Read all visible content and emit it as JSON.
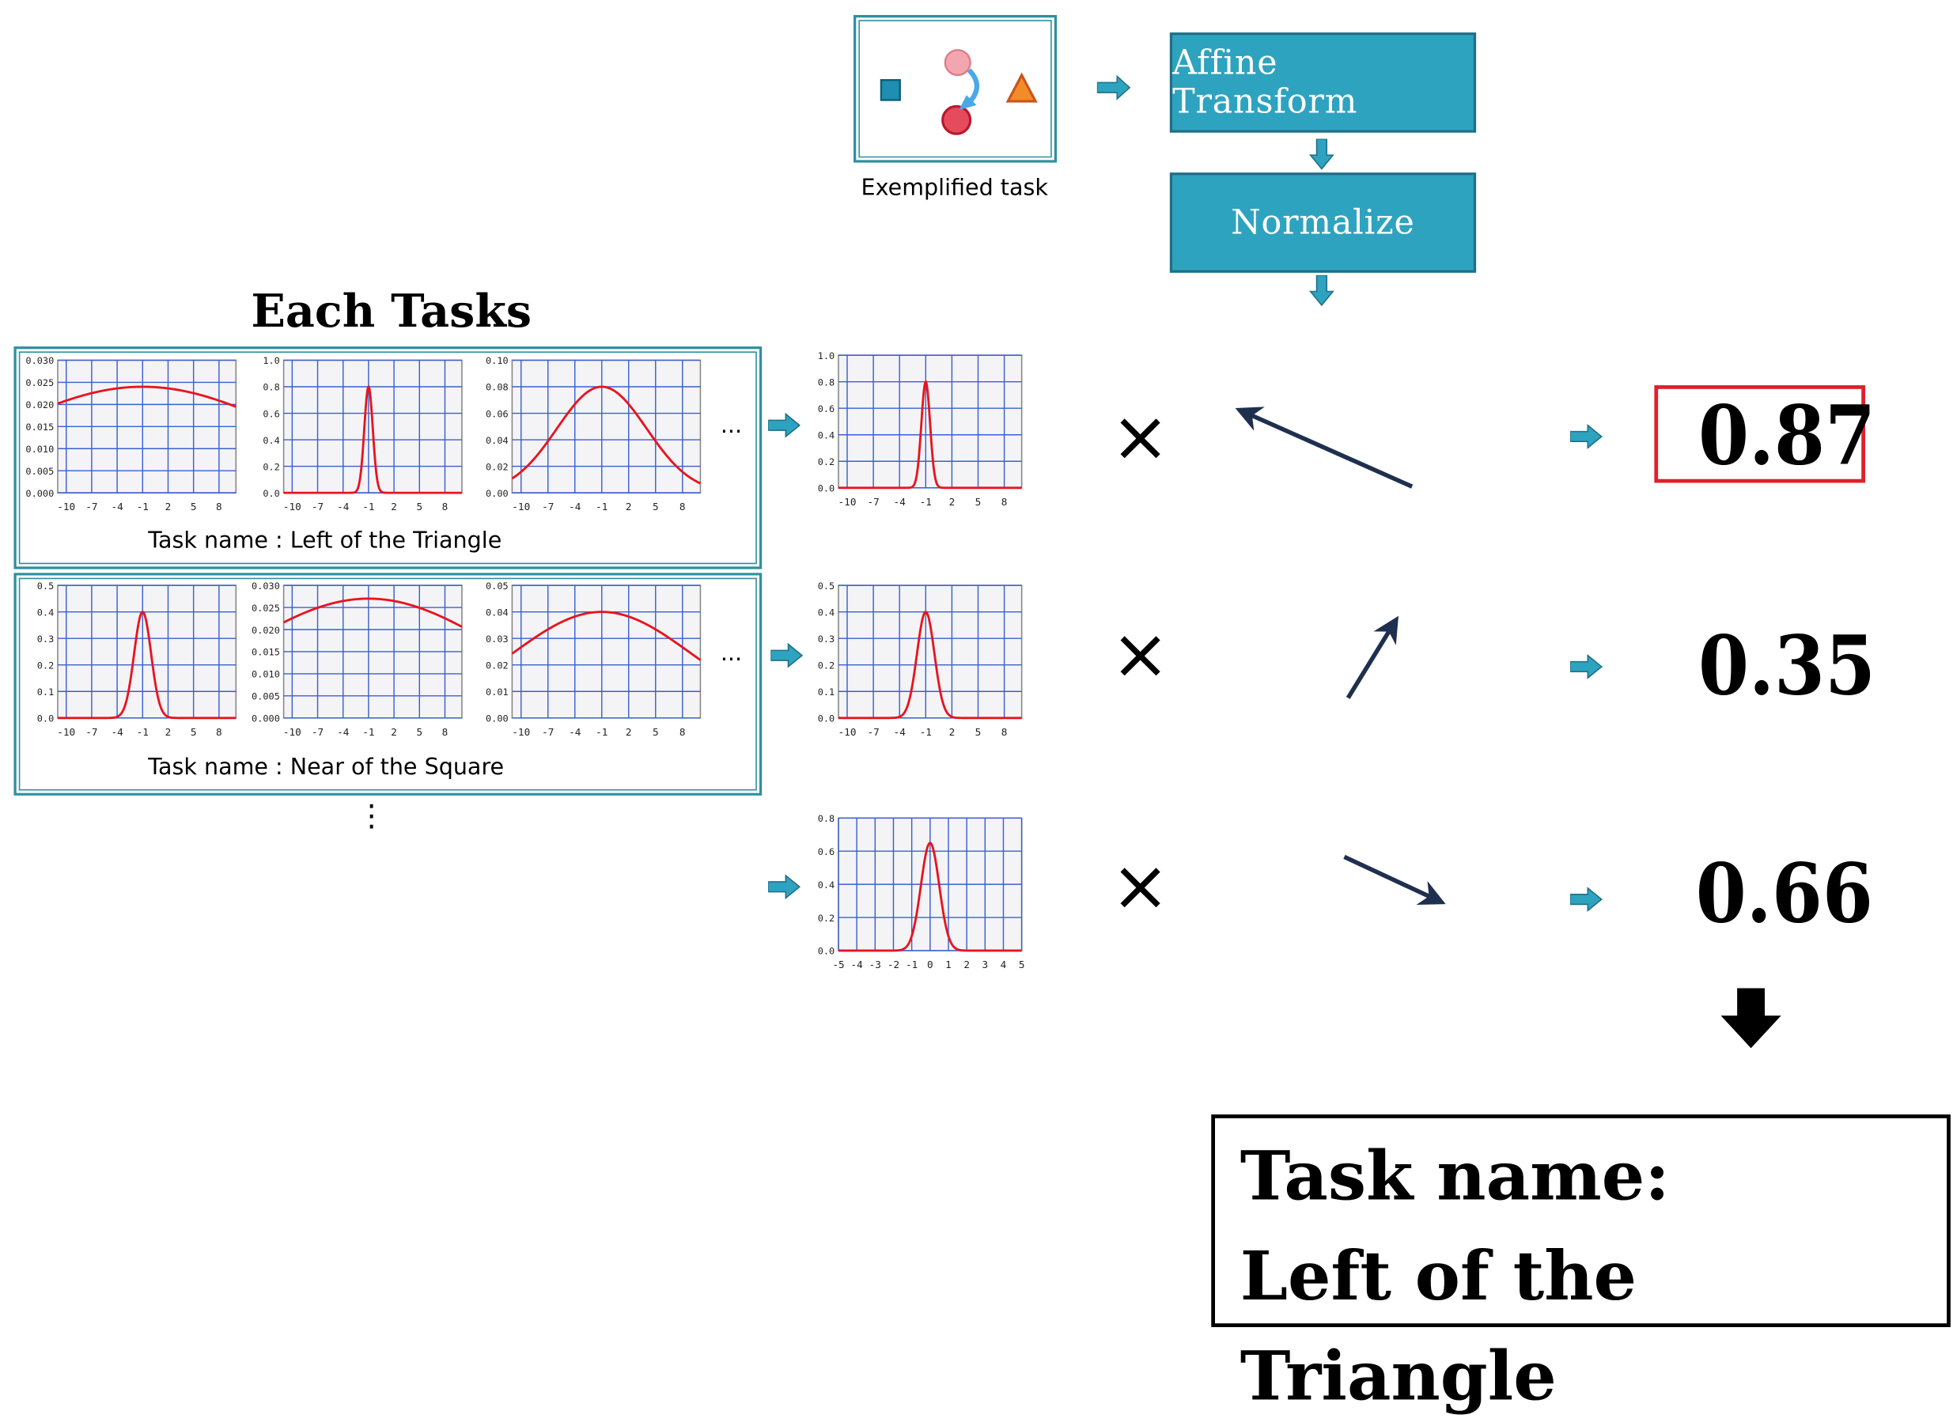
{
  "exemplified_task": {
    "caption": "Exemplified task"
  },
  "pipeline": {
    "step1": "Affine Transform",
    "step2": "Normalize"
  },
  "each_tasks": {
    "title": "Each Tasks",
    "ellipsis": "...",
    "vdots": "⋮"
  },
  "tasks": [
    {
      "name_label": "Task name : Left of the Triangle"
    },
    {
      "name_label": "Task name : Near of the Square"
    }
  ],
  "multiply_symbol": "×",
  "scores": [
    {
      "value": "0.87",
      "highlighted": true
    },
    {
      "value": "0.35",
      "highlighted": false
    },
    {
      "value": "0.66",
      "highlighted": false
    }
  ],
  "result": {
    "line1": "Task name:",
    "line2": "Left of the Triangle"
  },
  "colors": {
    "teal": "#2ea3c0",
    "curve": "#e8141e",
    "grid": "#3a5fd0",
    "highlight": "#e0202a",
    "arrow_dark": "#1f2f4f"
  },
  "chart_data": [
    {
      "id": "t1c1",
      "type": "line",
      "x_ticks": [
        "-10",
        "-7",
        "-4",
        "-1",
        "2",
        "5",
        "8"
      ],
      "y_ticks": [
        "0.000",
        "0.005",
        "0.010",
        "0.015",
        "0.020",
        "0.025",
        "0.030"
      ],
      "xlim": [
        -11,
        10
      ],
      "ylim": [
        0,
        0.03
      ],
      "curve": {
        "kind": "gaussian",
        "mean": -1,
        "sigma": 17,
        "peak": 0.024
      }
    },
    {
      "id": "t1c2",
      "type": "line",
      "x_ticks": [
        "-10",
        "-7",
        "-4",
        "-1",
        "2",
        "5",
        "8"
      ],
      "y_ticks": [
        "0.0",
        "0.2",
        "0.4",
        "0.6",
        "0.8",
        "1.0"
      ],
      "xlim": [
        -11,
        10
      ],
      "ylim": [
        0,
        1.0
      ],
      "curve": {
        "kind": "gaussian",
        "mean": -1,
        "sigma": 0.5,
        "peak": 0.8
      }
    },
    {
      "id": "t1c3",
      "type": "line",
      "x_ticks": [
        "-10",
        "-7",
        "-4",
        "-1",
        "2",
        "5",
        "8"
      ],
      "y_ticks": [
        "0.00",
        "0.02",
        "0.04",
        "0.06",
        "0.08",
        "0.10"
      ],
      "xlim": [
        -11,
        10
      ],
      "ylim": [
        0,
        0.1
      ],
      "curve": {
        "kind": "gaussian",
        "mean": -1,
        "sigma": 5,
        "peak": 0.08
      }
    },
    {
      "id": "t2c1",
      "type": "line",
      "x_ticks": [
        "-10",
        "-7",
        "-4",
        "-1",
        "2",
        "5",
        "8"
      ],
      "y_ticks": [
        "0.0",
        "0.1",
        "0.2",
        "0.3",
        "0.4",
        "0.5"
      ],
      "xlim": [
        -11,
        10
      ],
      "ylim": [
        0,
        0.5
      ],
      "curve": {
        "kind": "gaussian",
        "mean": -1,
        "sigma": 1,
        "peak": 0.4
      }
    },
    {
      "id": "t2c2",
      "type": "line",
      "x_ticks": [
        "-10",
        "-7",
        "-4",
        "-1",
        "2",
        "5",
        "8"
      ],
      "y_ticks": [
        "0.000",
        "0.005",
        "0.010",
        "0.015",
        "0.020",
        "0.025",
        "0.030"
      ],
      "xlim": [
        -11,
        10
      ],
      "ylim": [
        0,
        0.03
      ],
      "curve": {
        "kind": "gaussian",
        "mean": -1,
        "sigma": 15,
        "peak": 0.027
      }
    },
    {
      "id": "t2c3",
      "type": "line",
      "x_ticks": [
        "-10",
        "-7",
        "-4",
        "-1",
        "2",
        "5",
        "8"
      ],
      "y_ticks": [
        "0.00",
        "0.01",
        "0.02",
        "0.03",
        "0.04",
        "0.05"
      ],
      "xlim": [
        -11,
        10
      ],
      "ylim": [
        0,
        0.05
      ],
      "curve": {
        "kind": "gaussian",
        "mean": -1,
        "sigma": 10,
        "peak": 0.04
      }
    },
    {
      "id": "n1",
      "type": "line",
      "x_ticks": [
        "-10",
        "-7",
        "-4",
        "-1",
        "2",
        "5",
        "8"
      ],
      "y_ticks": [
        "0.0",
        "0.2",
        "0.4",
        "0.6",
        "0.8",
        "1.0"
      ],
      "xlim": [
        -11,
        10
      ],
      "ylim": [
        0,
        1.0
      ],
      "curve": {
        "kind": "gaussian",
        "mean": -1,
        "sigma": 0.5,
        "peak": 0.8
      }
    },
    {
      "id": "n2",
      "type": "line",
      "x_ticks": [
        "-10",
        "-7",
        "-4",
        "-1",
        "2",
        "5",
        "8"
      ],
      "y_ticks": [
        "0.0",
        "0.1",
        "0.2",
        "0.3",
        "0.4",
        "0.5"
      ],
      "xlim": [
        -11,
        10
      ],
      "ylim": [
        0,
        0.5
      ],
      "curve": {
        "kind": "gaussian",
        "mean": -1,
        "sigma": 1,
        "peak": 0.4
      }
    },
    {
      "id": "n3",
      "type": "line",
      "x_ticks": [
        "-5",
        "-4",
        "-3",
        "-2",
        "-1",
        "0",
        "1",
        "2",
        "3",
        "4",
        "5"
      ],
      "y_ticks": [
        "0.0",
        "0.2",
        "0.4",
        "0.6",
        "0.8"
      ],
      "xlim": [
        -5,
        5
      ],
      "ylim": [
        0,
        0.8
      ],
      "curve": {
        "kind": "gaussian",
        "mean": 0,
        "sigma": 0.5,
        "peak": 0.65
      }
    }
  ]
}
